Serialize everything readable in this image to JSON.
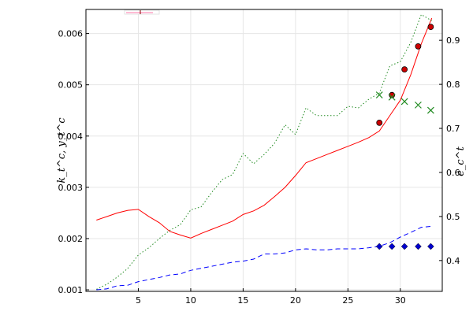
{
  "chart_data": {
    "type": "line",
    "title": "",
    "xlabel": "",
    "ylabel_left": "k_t^c, y_t^c",
    "ylabel_right": "e_c^t",
    "xlim": [
      0,
      34
    ],
    "ylim_left": [
      0.00097,
      0.00647
    ],
    "ylim_right": [
      0.33,
      0.97
    ],
    "xticks": [
      5,
      10,
      15,
      20,
      25,
      30
    ],
    "yticks_left": [
      0.001,
      0.002,
      0.003,
      0.004,
      0.005,
      0.006
    ],
    "yticks_left_labels": [
      "0.001",
      "0.002",
      "0.003",
      "0.004",
      "0.005",
      "0.006"
    ],
    "yticks_right": [
      0.4,
      0.5,
      0.6,
      0.7,
      0.8,
      0.9
    ],
    "yticks_right_labels": [
      "0.4",
      "0.5",
      "0.6",
      "0.7",
      "0.8",
      "0.9"
    ],
    "grid": true,
    "legend": "top-left (empty)",
    "series": [
      {
        "axis": "left",
        "style": "solid",
        "color": "#ff0000",
        "x": [
          1,
          2,
          3,
          4,
          5,
          6,
          7,
          8,
          9,
          10,
          11,
          12,
          13,
          14,
          15,
          16,
          17,
          18,
          19,
          20,
          21,
          22,
          23,
          24,
          25,
          26,
          27,
          28,
          29,
          30,
          31,
          32,
          33
        ],
        "values": [
          0.00236,
          0.00243,
          0.0025,
          0.00255,
          0.00257,
          0.00243,
          0.00231,
          0.00214,
          0.00207,
          0.00201,
          0.0021,
          0.00218,
          0.00226,
          0.00234,
          0.00247,
          0.00254,
          0.00265,
          0.00282,
          0.003,
          0.00323,
          0.00348,
          0.00356,
          0.00364,
          0.00372,
          0.0038,
          0.00388,
          0.00397,
          0.0041,
          0.0044,
          0.0047,
          0.0052,
          0.0058,
          0.0063
        ]
      },
      {
        "axis": "left",
        "style": "dotted",
        "color": "#228b22",
        "x": [
          1,
          2,
          3,
          4,
          5,
          6,
          7,
          8,
          9,
          10,
          11,
          12,
          13,
          14,
          15,
          16,
          17,
          18,
          19,
          20,
          21,
          22,
          23,
          24,
          25,
          26,
          27,
          28,
          29,
          30,
          31,
          32,
          33
        ],
        "values": [
          0.00101,
          0.00111,
          0.00125,
          0.00142,
          0.00168,
          0.00182,
          0.002,
          0.00216,
          0.00227,
          0.00256,
          0.00262,
          0.0029,
          0.00315,
          0.00325,
          0.00366,
          0.00346,
          0.00364,
          0.00386,
          0.00422,
          0.00403,
          0.00455,
          0.0044,
          0.0044,
          0.0044,
          0.00458,
          0.00455,
          0.00472,
          0.00484,
          0.00537,
          0.00545,
          0.00583,
          0.00637,
          0.00625
        ]
      },
      {
        "axis": "left",
        "style": "dashed",
        "color": "#0000ff",
        "x": [
          1,
          2,
          3,
          4,
          5,
          6,
          7,
          8,
          9,
          10,
          11,
          12,
          13,
          14,
          15,
          16,
          17,
          18,
          19,
          20,
          21,
          22,
          23,
          24,
          25,
          26,
          27,
          28,
          29,
          30,
          31,
          32,
          33
        ],
        "values": [
          0.001,
          0.00102,
          0.00108,
          0.00109,
          0.00116,
          0.0012,
          0.00124,
          0.00129,
          0.00131,
          0.00138,
          0.00142,
          0.00146,
          0.0015,
          0.00154,
          0.00156,
          0.0016,
          0.0017,
          0.0017,
          0.00172,
          0.00178,
          0.0018,
          0.00178,
          0.00178,
          0.0018,
          0.0018,
          0.0018,
          0.00182,
          0.00185,
          0.00192,
          0.00203,
          0.00212,
          0.00222,
          0.00224
        ]
      },
      {
        "axis": "left",
        "style": "marker-circle",
        "color": "#cc0000",
        "x": [
          28,
          29.2,
          30.4,
          31.7,
          32.9
        ],
        "values": [
          0.00426,
          0.0048,
          0.0053,
          0.00575,
          0.00613
        ]
      },
      {
        "axis": "right",
        "style": "marker-x",
        "color": "#228b22",
        "x": [
          28,
          29.2,
          30.4,
          31.7,
          32.9
        ],
        "values": [
          0.776,
          0.771,
          0.761,
          0.753,
          0.741
        ]
      },
      {
        "axis": "right",
        "style": "marker-diamond",
        "color": "#0000cd",
        "x": [
          28,
          29.2,
          30.4,
          31.7,
          32.9
        ],
        "values": [
          0.432,
          0.432,
          0.432,
          0.432,
          0.432
        ]
      }
    ]
  }
}
